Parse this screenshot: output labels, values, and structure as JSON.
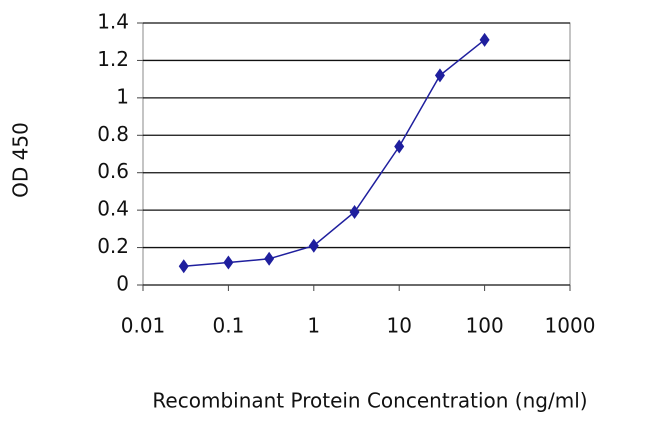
{
  "chart_data": {
    "type": "line",
    "y_label": "OD 450",
    "x_label": "Recombinant Protein Concentration (ng/ml)",
    "x": [
      0.03,
      0.1,
      0.3,
      1,
      3,
      10,
      30,
      100
    ],
    "series": [
      {
        "color": "#1f1f9e",
        "values": [
          0.1,
          0.12,
          0.14,
          0.21,
          0.39,
          0.74,
          1.12,
          1.31
        ]
      }
    ],
    "xscale": "log",
    "xlim": [
      0.01,
      1000
    ],
    "xticks": [
      0.01,
      0.1,
      1,
      10,
      100,
      1000
    ],
    "ylim": [
      0,
      1.4
    ],
    "yticks": [
      0,
      0.2,
      0.4,
      0.6,
      0.8,
      1,
      1.2,
      1.4
    ],
    "grid": true
  }
}
